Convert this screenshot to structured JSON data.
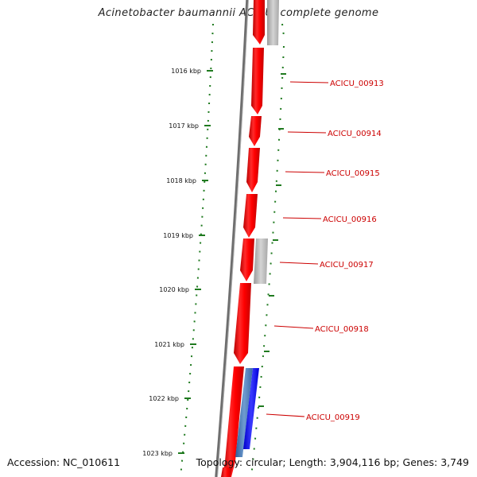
{
  "title": "Acinetobacter baumannii ACICU, complete genome",
  "footer": {
    "accession": "Accession: NC_010611",
    "topology": "Topology: circular; Length: 3,904,116 bp; Genes: 3,749"
  },
  "ticks": [
    "1016 kbp",
    "1017 kbp",
    "1018 kbp",
    "1019 kbp",
    "1020 kbp",
    "1021 kbp",
    "1022 kbp",
    "1023 kbp"
  ],
  "genes": [
    "ACICU_00913",
    "ACICU_00914",
    "ACICU_00915",
    "ACICU_00916",
    "ACICU_00917",
    "ACICU_00918",
    "ACICU_00919"
  ],
  "colors": {
    "gene": "#ff1010",
    "gene_shade": "#c80000",
    "backbone": "#808080",
    "tick": "#1f7a1f",
    "label": "#cc0000",
    "gray_feature": "#b8b8b8",
    "blue_feature": "#1414ff",
    "steel_feature": "#4a78b4"
  }
}
